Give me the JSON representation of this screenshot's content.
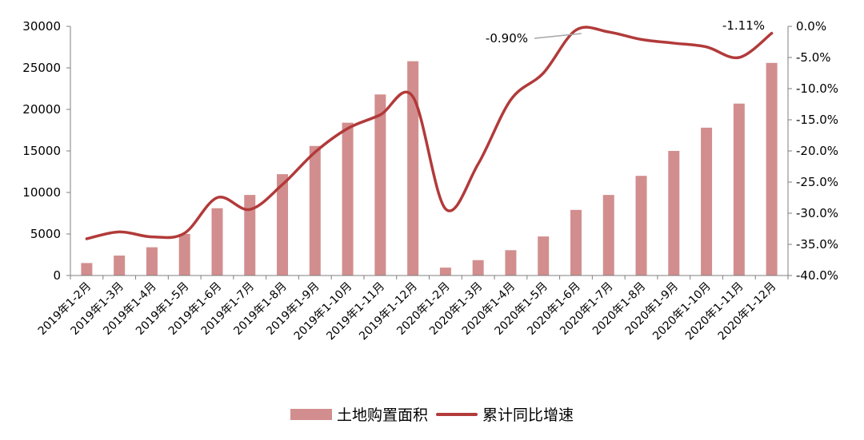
{
  "chart_data": {
    "type": "bar+line",
    "categories": [
      "2019年1-2月",
      "2019年1-3月",
      "2019年1-4月",
      "2019年1-5月",
      "2019年1-6月",
      "2019年1-7月",
      "2019年1-8月",
      "2019年1-9月",
      "2019年1-10月",
      "2019年1-11月",
      "2019年1-12月",
      "2020年1-2月",
      "2020年1-3月",
      "2020年1-4月",
      "2020年1-5月",
      "2020年1-6月",
      "2020年1-7月",
      "2020年1-8月",
      "2020年1-9月",
      "2020年1-10月",
      "2020年1-11月",
      "2020年1-12月"
    ],
    "series": [
      {
        "name": "土地购置面积",
        "kind": "bar",
        "axis": "left",
        "color": "#d28e8e",
        "values": [
          1500,
          2400,
          3400,
          5000,
          8100,
          9700,
          12200,
          15600,
          18400,
          21800,
          25800,
          950,
          1850,
          3050,
          4700,
          7900,
          9700,
          12000,
          15000,
          17800,
          20700,
          25600
        ]
      },
      {
        "name": "累计同比增速",
        "kind": "line",
        "axis": "right",
        "color": "#b23a3a",
        "values": [
          -34.1,
          -33.0,
          -33.8,
          -33.2,
          -27.5,
          -29.4,
          -25.4,
          -20.2,
          -16.4,
          -14.2,
          -11.3,
          -29.3,
          -22.1,
          -11.8,
          -7.5,
          -0.6,
          -0.9,
          -2.1,
          -2.7,
          -3.3,
          -5.0,
          -1.11
        ]
      }
    ],
    "y_left": {
      "min": 0,
      "max": 30000,
      "ticks": [
        "0",
        "5000",
        "10000",
        "15000",
        "20000",
        "25000",
        "30000"
      ]
    },
    "y_right": {
      "min": -40,
      "max": 0,
      "ticks": [
        "-40.0%",
        "-35.0%",
        "-30.0%",
        "-25.0%",
        "-20.0%",
        "-15.0%",
        "-10.0%",
        "-5.0%",
        "0.0%"
      ]
    },
    "annotations": [
      {
        "text": "-0.90%",
        "series_index": 1,
        "point_index": 16
      },
      {
        "text": "-1.11%",
        "series_index": 1,
        "point_index": 21
      }
    ],
    "grid": false,
    "legend_position": "bottom"
  }
}
